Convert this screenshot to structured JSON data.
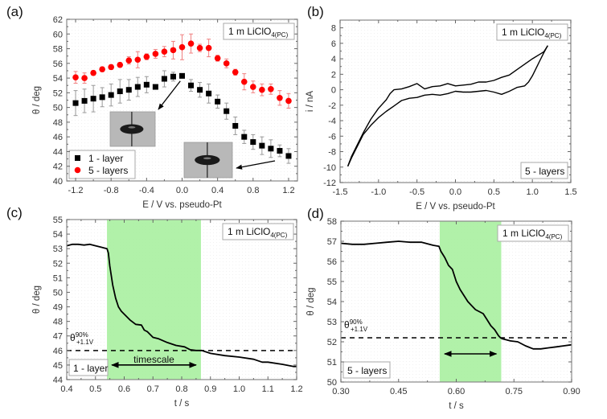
{
  "figure": {
    "panels": [
      "(a)",
      "(b)",
      "(c)",
      "(d)"
    ]
  },
  "chart_data": [
    {
      "id": "a",
      "panel_label": "(a)",
      "type": "scatter",
      "xlabel": "E / V vs. pseudo-Pt",
      "ylabel": "θ / deg",
      "xlim": [
        -1.3,
        1.3
      ],
      "ylim": [
        40,
        62
      ],
      "xticks": [
        -1.2,
        -0.8,
        -0.4,
        0.0,
        0.4,
        0.8,
        1.2
      ],
      "xtick_labels": [
        "-1.2",
        "-0.8",
        "-0.4",
        "0.0",
        "0.4",
        "0.8",
        "1.2"
      ],
      "yticks": [
        40,
        42,
        44,
        46,
        48,
        50,
        52,
        54,
        56,
        58,
        60,
        62
      ],
      "annotation": {
        "main": "1 m LiClO",
        "sub": "4(PC)"
      },
      "legend": {
        "placement": "bottom-left",
        "entries": [
          "1 - layer",
          "5 - layers"
        ]
      },
      "insets": [
        "droplet image at 0.0 V (1 - layer)",
        "droplet image at 1.1 V (1 - layer)"
      ],
      "x": [
        -1.2,
        -1.1,
        -1.0,
        -0.9,
        -0.8,
        -0.7,
        -0.6,
        -0.5,
        -0.4,
        -0.3,
        -0.2,
        -0.1,
        0.0,
        0.1,
        0.2,
        0.3,
        0.4,
        0.5,
        0.6,
        0.7,
        0.8,
        0.9,
        1.0,
        1.1,
        1.2
      ],
      "series": [
        {
          "name": "1 - layer",
          "marker": "square",
          "color": "#000000",
          "values": [
            50.6,
            50.9,
            51.2,
            51.4,
            51.7,
            52.2,
            52.4,
            52.8,
            53.1,
            52.8,
            53.9,
            54.2,
            54.3,
            53.0,
            52.4,
            51.9,
            50.8,
            49.5,
            47.5,
            46.0,
            45.3,
            44.8,
            44.4,
            44.1,
            43.4
          ],
          "errors": [
            1.7,
            1.6,
            1.8,
            1.3,
            1.5,
            1.6,
            1.4,
            1.3,
            1.1,
            0.0,
            1.1,
            0.6,
            0.3,
            0.8,
            1.0,
            1.3,
            0.9,
            1.1,
            1.2,
            0.9,
            1.0,
            1.2,
            1.2,
            0.8,
            1.0
          ]
        },
        {
          "name": "5 - layers",
          "marker": "circle",
          "color": "#ff0000",
          "values": [
            54.1,
            54.0,
            54.7,
            55.2,
            55.5,
            55.8,
            56.4,
            56.5,
            56.9,
            57.3,
            57.6,
            57.8,
            58.2,
            58.7,
            58.1,
            58.1,
            56.7,
            56.0,
            54.8,
            53.5,
            52.8,
            52.4,
            52.5,
            51.3,
            50.9
          ],
          "errors": [
            0.8,
            0.7,
            0.3,
            0.3,
            0.3,
            0.3,
            0.5,
            1.1,
            0.4,
            0.6,
            0.7,
            1.2,
            1.7,
            1.3,
            0.5,
            1.2,
            0.4,
            0.6,
            0.4,
            1.1,
            0.8,
            0.8,
            0.7,
            1.0,
            1.0
          ]
        }
      ]
    },
    {
      "id": "b",
      "panel_label": "(b)",
      "type": "line",
      "xlabel": "E / V vs. pseudo-Pt",
      "ylabel": "i / nA",
      "xlim": [
        -1.5,
        1.5
      ],
      "ylim": [
        -12,
        9
      ],
      "xticks": [
        -1.5,
        -1.0,
        -0.5,
        0.0,
        0.5,
        1.0,
        1.5
      ],
      "xtick_labels": [
        "-1.5",
        "-1.0",
        "-0.5",
        "0.0",
        "0.5",
        "1.0",
        "1.5"
      ],
      "yticks": [
        -12,
        -10,
        -8,
        -6,
        -4,
        -2,
        0,
        2,
        4,
        6,
        8
      ],
      "annotation": {
        "main": "1 m LiClO",
        "sub": "4(PC)"
      },
      "label_box": "5 - layers",
      "series": [
        {
          "name": "forward scan",
          "x": [
            -1.4,
            -1.35,
            -1.3,
            -1.25,
            -1.2,
            -1.1,
            -1.0,
            -0.9,
            -0.8,
            -0.7,
            -0.6,
            -0.5,
            -0.4,
            -0.3,
            -0.2,
            -0.1,
            0.0,
            0.1,
            0.2,
            0.3,
            0.4,
            0.5,
            0.6,
            0.7,
            0.8,
            0.9,
            0.95,
            1.0,
            1.05,
            1.1,
            1.15,
            1.2
          ],
          "values": [
            -9.9,
            -8.8,
            -7.8,
            -6.8,
            -5.8,
            -4.6,
            -3.6,
            -2.8,
            -2.1,
            -1.4,
            -1.1,
            -1.0,
            -0.7,
            -0.6,
            -0.7,
            -0.5,
            -0.2,
            -0.3,
            -0.3,
            -0.2,
            -0.1,
            -0.3,
            -0.6,
            -0.2,
            0.3,
            0.5,
            1.0,
            1.8,
            2.8,
            3.8,
            4.8,
            5.7
          ]
        },
        {
          "name": "reverse scan",
          "x": [
            1.2,
            1.15,
            1.1,
            1.0,
            0.9,
            0.8,
            0.7,
            0.6,
            0.5,
            0.4,
            0.3,
            0.2,
            0.1,
            0.0,
            -0.1,
            -0.2,
            -0.3,
            -0.4,
            -0.5,
            -0.6,
            -0.7,
            -0.8,
            -0.85,
            -0.9,
            -1.0,
            -1.1,
            -1.2,
            -1.25,
            -1.3,
            -1.35,
            -1.4
          ],
          "values": [
            5.7,
            4.9,
            4.6,
            4.0,
            3.3,
            2.6,
            1.9,
            1.6,
            1.2,
            1.0,
            1.0,
            0.7,
            0.6,
            0.5,
            0.8,
            0.5,
            0.4,
            0.1,
            0.8,
            0.4,
            0.1,
            0.0,
            -0.5,
            -1.3,
            -2.4,
            -3.8,
            -5.6,
            -6.6,
            -7.6,
            -8.6,
            -9.9
          ]
        }
      ]
    },
    {
      "id": "c",
      "panel_label": "(c)",
      "type": "line",
      "xlabel": "t / s",
      "ylabel": "θ / deg",
      "xlim": [
        0.4,
        1.2
      ],
      "ylim": [
        44,
        55
      ],
      "xticks": [
        0.4,
        0.5,
        0.6,
        0.7,
        0.8,
        0.9,
        1.0,
        1.1,
        1.2
      ],
      "xtick_labels": [
        "0.4",
        "0.5",
        "0.6",
        "0.7",
        "0.8",
        "0.9",
        "1.0",
        "1.1",
        "1.2"
      ],
      "yticks": [
        44,
        45,
        46,
        47,
        48,
        49,
        50,
        51,
        52,
        53,
        54,
        55
      ],
      "annotation": {
        "main": "1 m LiClO",
        "sub": "4(PC)"
      },
      "label_box": "1 - layer",
      "threshold": {
        "value": 46.0,
        "label": "θ",
        "sup": "90%",
        "sub": "+1.1V"
      },
      "shaded_region": [
        0.54,
        0.867
      ],
      "timescale_label": "timescale",
      "series": [
        {
          "name": "contact angle",
          "x": [
            0.4,
            0.42,
            0.44,
            0.46,
            0.48,
            0.5,
            0.52,
            0.54,
            0.545,
            0.55,
            0.56,
            0.57,
            0.58,
            0.59,
            0.6,
            0.62,
            0.64,
            0.66,
            0.67,
            0.68,
            0.7,
            0.72,
            0.75,
            0.78,
            0.81,
            0.83,
            0.85,
            0.87,
            0.9,
            0.95,
            1.0,
            1.05,
            1.08,
            1.1,
            1.15,
            1.19,
            1.2
          ],
          "values": [
            53.2,
            53.3,
            53.3,
            53.25,
            53.3,
            53.2,
            53.1,
            53.0,
            52.7,
            51.8,
            50.5,
            49.6,
            49.0,
            48.7,
            48.5,
            48.1,
            47.8,
            47.75,
            47.4,
            47.3,
            46.9,
            46.8,
            46.55,
            46.35,
            46.25,
            46.05,
            46.0,
            46.0,
            45.8,
            45.65,
            45.55,
            45.4,
            45.2,
            45.2,
            45.05,
            44.9,
            44.9
          ]
        }
      ]
    },
    {
      "id": "d",
      "panel_label": "(d)",
      "type": "line",
      "xlabel": "t / s",
      "ylabel": "θ / deg",
      "xlim": [
        0.3,
        0.9
      ],
      "ylim": [
        50,
        58
      ],
      "xticks": [
        0.3,
        0.45,
        0.6,
        0.75,
        0.9
      ],
      "xtick_labels": [
        "0.30",
        "0.45",
        "0.60",
        "0.75",
        "0.90"
      ],
      "yticks": [
        50,
        51,
        52,
        53,
        54,
        55,
        56,
        57,
        58
      ],
      "annotation": {
        "main": "1 m LiClO",
        "sub": "4(PC)"
      },
      "label_box": "5 - layers",
      "threshold": {
        "value": 52.2,
        "label": "θ",
        "sup": "90%",
        "sub": "+1.1V"
      },
      "shaded_region": [
        0.557,
        0.717
      ],
      "series": [
        {
          "name": "contact angle",
          "x": [
            0.3,
            0.33,
            0.36,
            0.39,
            0.42,
            0.45,
            0.48,
            0.51,
            0.54,
            0.555,
            0.56,
            0.57,
            0.58,
            0.59,
            0.6,
            0.61,
            0.62,
            0.63,
            0.64,
            0.65,
            0.66,
            0.67,
            0.68,
            0.69,
            0.7,
            0.71,
            0.715,
            0.72,
            0.74,
            0.76,
            0.78,
            0.8,
            0.82,
            0.84,
            0.86,
            0.88,
            0.9
          ],
          "values": [
            56.9,
            56.85,
            56.85,
            56.9,
            56.95,
            57.0,
            56.95,
            56.95,
            56.8,
            56.75,
            56.5,
            56.2,
            55.8,
            55.6,
            55.0,
            54.6,
            54.3,
            54.0,
            53.8,
            53.6,
            53.5,
            53.4,
            53.1,
            52.8,
            52.6,
            52.3,
            52.2,
            52.15,
            52.05,
            52.0,
            51.8,
            51.65,
            51.65,
            51.7,
            51.75,
            51.8,
            51.85
          ]
        }
      ]
    }
  ]
}
